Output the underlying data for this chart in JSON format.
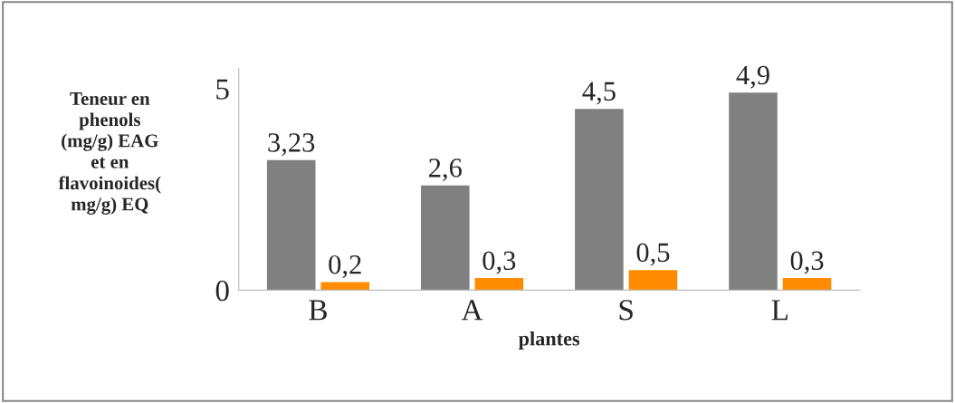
{
  "chart_data": {
    "type": "bar",
    "ylabel": "Teneur en\nphenols\n(mg/g) EAG\net en\nflavoinoides(\nmg/g) EQ",
    "xlabel": "plantes",
    "categories": [
      "B",
      "A",
      "S",
      "L"
    ],
    "series": [
      {
        "color": "#808080",
        "values": [
          3.23,
          2.6,
          4.5,
          4.9
        ],
        "value_labels": [
          "3,23",
          "2,6",
          "4,5",
          "4,9"
        ]
      },
      {
        "color": "#ff8c00",
        "values": [
          0.2,
          0.3,
          0.5,
          0.3
        ],
        "value_labels": [
          "0,2",
          "0,3",
          "0,5",
          "0,3"
        ]
      }
    ],
    "ylim": [
      0,
      5.5
    ],
    "yticks": [
      0,
      5
    ],
    "grid": false
  }
}
